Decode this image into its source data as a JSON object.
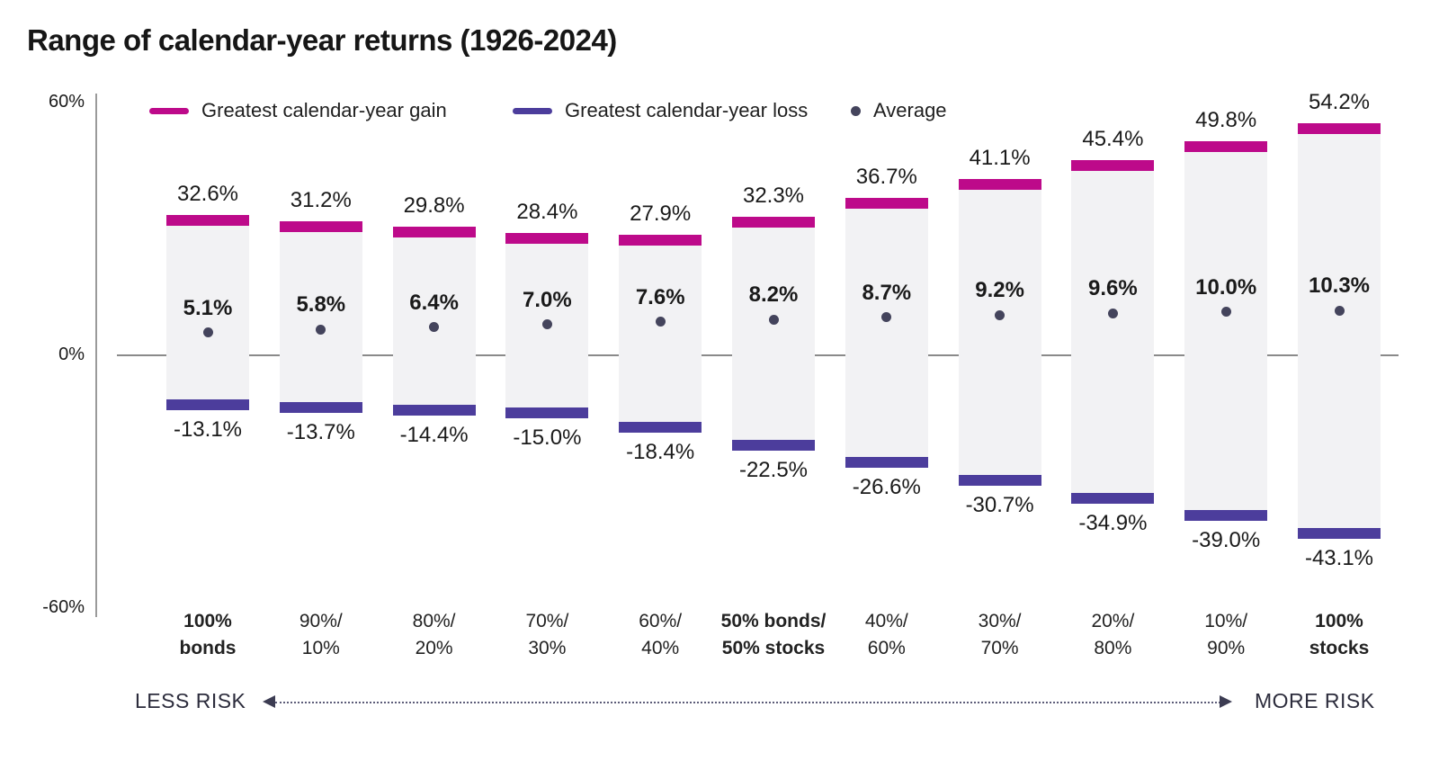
{
  "title": "Range of calendar-year returns (1926-2024)",
  "legend": [
    {
      "label": "Greatest calendar-year gain",
      "swatch": "line",
      "color": "#bd0a8a"
    },
    {
      "label": "Greatest calendar-year loss",
      "swatch": "line",
      "color": "#4c3d9c"
    },
    {
      "label": "Average",
      "swatch": "dot",
      "color": "#44445c"
    }
  ],
  "y_axis": {
    "ticks": [
      "60%",
      "0%",
      "-60%"
    ],
    "min": -60,
    "max": 60
  },
  "risk_scale": {
    "left": "LESS RISK",
    "right": "MORE RISK"
  },
  "colors": {
    "gain": "#bd0a8a",
    "loss": "#4c3d9c",
    "average_dot": "#44445c",
    "bar_body": "#f2f2f4",
    "axis": "#8a8a8a",
    "text": "#1a1a1a"
  },
  "chart_data": {
    "type": "bar",
    "title": "Range of calendar-year returns (1926-2024)",
    "subtitle": "",
    "xlabel": "",
    "ylabel": "",
    "ylim": [
      -60,
      60
    ],
    "yticks_shown": [
      "60%",
      "0%",
      "-60%"
    ],
    "grid": "zero-line-only",
    "legend_position": "top-inside",
    "annotations": {
      "less_risk": "LESS RISK",
      "more_risk": "MORE RISK"
    },
    "categories": [
      {
        "lines": [
          "100%",
          "bonds"
        ],
        "bold": true
      },
      {
        "lines": [
          "90%/",
          "10%"
        ],
        "bold": false
      },
      {
        "lines": [
          "80%/",
          "20%"
        ],
        "bold": false
      },
      {
        "lines": [
          "70%/",
          "30%"
        ],
        "bold": false
      },
      {
        "lines": [
          "60%/",
          "40%"
        ],
        "bold": false
      },
      {
        "lines": [
          "50% bonds/",
          "50% stocks"
        ],
        "bold": true
      },
      {
        "lines": [
          "40%/",
          "60%"
        ],
        "bold": false
      },
      {
        "lines": [
          "30%/",
          "70%"
        ],
        "bold": false
      },
      {
        "lines": [
          "20%/",
          "80%"
        ],
        "bold": false
      },
      {
        "lines": [
          "10%/",
          "90%"
        ],
        "bold": false
      },
      {
        "lines": [
          "100%",
          "stocks"
        ],
        "bold": true
      }
    ],
    "series": [
      {
        "name": "Greatest calendar-year gain",
        "color": "#bd0a8a",
        "values": [
          32.6,
          31.2,
          29.8,
          28.4,
          27.9,
          32.3,
          36.7,
          41.1,
          45.4,
          49.8,
          54.2
        ]
      },
      {
        "name": "Greatest calendar-year loss",
        "color": "#4c3d9c",
        "values": [
          -13.1,
          -13.7,
          -14.4,
          -15.0,
          -18.4,
          -22.5,
          -26.6,
          -30.7,
          -34.9,
          -39.0,
          -43.1
        ]
      },
      {
        "name": "Average",
        "color": "#44445c",
        "values": [
          5.1,
          5.8,
          6.4,
          7.0,
          7.6,
          8.2,
          8.7,
          9.2,
          9.6,
          10.0,
          10.3
        ]
      }
    ]
  }
}
